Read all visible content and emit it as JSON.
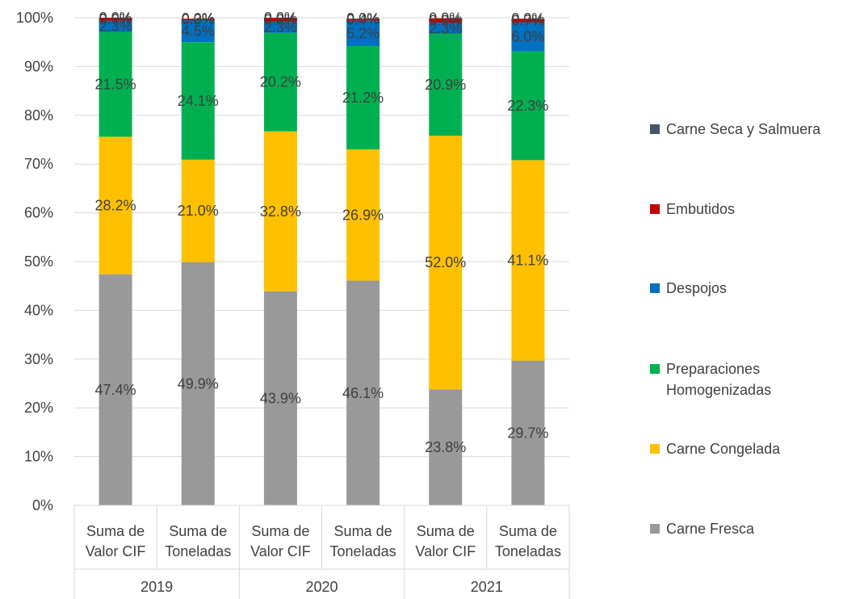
{
  "chart_data": {
    "type": "bar",
    "stacked": true,
    "percent_stacked": true,
    "groups": [
      "2019",
      "2020",
      "2021"
    ],
    "sub_categories": [
      "Suma de Valor CIF",
      "Suma de Toneladas"
    ],
    "categories": [
      {
        "group": "2019",
        "label_lines": [
          "Suma de",
          "Valor CIF"
        ]
      },
      {
        "group": "2019",
        "label_lines": [
          "Suma de",
          "Toneladas"
        ]
      },
      {
        "group": "2020",
        "label_lines": [
          "Suma de",
          "Valor CIF"
        ]
      },
      {
        "group": "2020",
        "label_lines": [
          "Suma de",
          "Toneladas"
        ]
      },
      {
        "group": "2021",
        "label_lines": [
          "Suma de",
          "Valor CIF"
        ]
      },
      {
        "group": "2021",
        "label_lines": [
          "Suma de",
          "Toneladas"
        ]
      }
    ],
    "series": [
      {
        "name": "Carne Fresca",
        "legend_lines": [
          "Carne Fresca"
        ],
        "color": "#999999",
        "values": [
          47.4,
          49.9,
          43.9,
          46.1,
          23.8,
          29.7
        ],
        "labels": [
          "47.4%",
          "49.9%",
          "43.9%",
          "46.1%",
          "23.8%",
          "29.7%"
        ]
      },
      {
        "name": "Carne Congelada",
        "legend_lines": [
          "Carne Congelada"
        ],
        "color": "#FFC000",
        "values": [
          28.2,
          21.0,
          32.8,
          26.9,
          52.0,
          41.1
        ],
        "labels": [
          "28.2%",
          "21.0%",
          "32.8%",
          "26.9%",
          "52.0%",
          "41.1%"
        ]
      },
      {
        "name": "Preparaciones Homogenizadas",
        "legend_lines": [
          "Preparaciones",
          "Homogenizadas"
        ],
        "color": "#00B050",
        "values": [
          21.5,
          24.1,
          20.2,
          21.2,
          20.9,
          22.3
        ],
        "labels": [
          "21.5%",
          "24.1%",
          "20.2%",
          "21.2%",
          "20.9%",
          "22.3%"
        ]
      },
      {
        "name": "Despojos",
        "legend_lines": [
          "Despojos"
        ],
        "color": "#0070C0",
        "values": [
          2.3,
          4.5,
          2.3,
          5.2,
          2.3,
          6.0
        ],
        "labels": [
          "2.3%",
          "4.5%",
          "2.3%",
          "5.2%",
          "2.3%",
          "6.0%"
        ]
      },
      {
        "name": "Embutidos",
        "legend_lines": [
          "Embutidos"
        ],
        "color": "#C00000",
        "values": [
          0.6,
          0.3,
          0.8,
          0.4,
          0.9,
          0.7
        ],
        "labels": [
          "0.6%",
          "0.3%",
          "0.8%",
          "0.4%",
          "0.9%",
          "0.7%"
        ]
      },
      {
        "name": "Carne Seca y Salmuera",
        "legend_lines": [
          "Carne Seca y Salmuera"
        ],
        "color": "#44546A",
        "values": [
          0.0,
          0.0,
          0.0,
          0.0,
          0.0,
          0.0
        ],
        "labels": [
          "0.0%",
          "0.0%",
          "0.0%",
          "0.0%",
          "0.0%",
          "0.0%"
        ]
      }
    ],
    "yticks": [
      "0%",
      "10%",
      "20%",
      "30%",
      "40%",
      "50%",
      "60%",
      "70%",
      "80%",
      "90%",
      "100%"
    ],
    "ylim": [
      0,
      100
    ],
    "grid": true,
    "legend_position": "right",
    "title": "",
    "xlabel": "",
    "ylabel": ""
  }
}
